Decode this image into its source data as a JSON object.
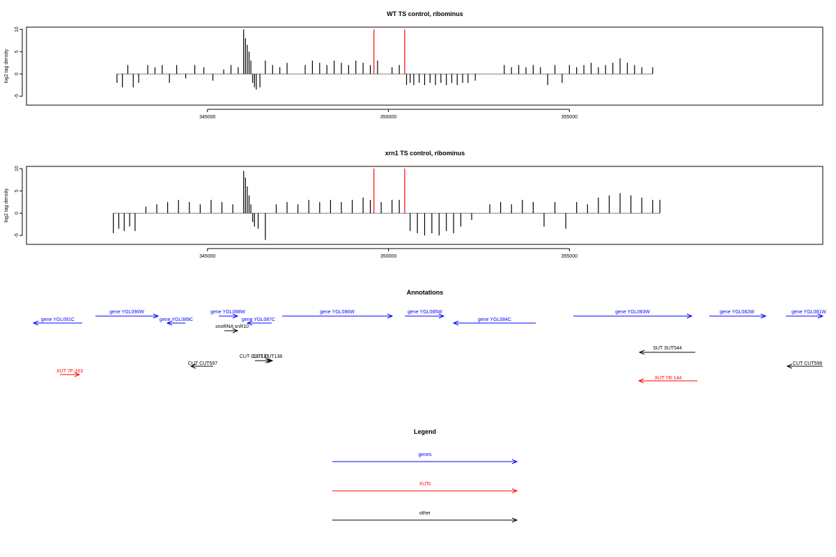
{
  "chart_data": [
    {
      "type": "bar",
      "title": "WT TS control, ribominus",
      "xlabel": "",
      "ylabel": "log2 tag density",
      "ylim": [
        -7,
        10.5
      ],
      "xlim": [
        340000,
        362000
      ],
      "xticks": [
        345000,
        350000,
        355000
      ],
      "xtick_labels": [
        "345000",
        "350000",
        "355000"
      ],
      "yticks": [
        -5,
        0,
        5,
        10
      ],
      "ytick_labels": [
        "-5",
        "0",
        "5",
        "10"
      ],
      "series": [
        {
          "x": [
            342500,
            342650,
            342800,
            342950,
            343100,
            343350,
            343550,
            343750,
            343950,
            344150,
            344400,
            344650,
            344900,
            345150,
            345450,
            345650,
            345850,
            346000,
            346050,
            346100,
            346150,
            346200,
            346250,
            346300,
            346350,
            346450,
            346600,
            346800,
            347000,
            347200,
            347700,
            347900,
            348100,
            348300,
            348500,
            348700,
            348900,
            349100,
            349300,
            349500,
            349700,
            350100,
            350300,
            350500,
            350600,
            350700,
            350850,
            351000,
            351150,
            351300,
            351450,
            351600,
            351750,
            351900,
            352050,
            352200,
            352400,
            353200,
            353400,
            353600,
            353800,
            354000,
            354200,
            354400,
            354600,
            354800,
            355000,
            355200,
            355400,
            355600,
            355800,
            356000,
            356200,
            356400,
            356600,
            356800,
            357000,
            357300
          ],
          "y": [
            -2,
            -3,
            2,
            -3,
            -2,
            2,
            1.5,
            2,
            -2,
            2,
            -1,
            2,
            1.5,
            -1.5,
            1,
            2,
            1.5,
            10,
            8,
            6.5,
            5,
            3,
            -2,
            -3,
            -3.5,
            -3,
            3,
            2,
            1.5,
            2.5,
            2,
            3,
            2.5,
            2,
            3,
            2.5,
            2,
            3,
            2.5,
            2,
            3,
            1.5,
            2,
            -2.5,
            -2,
            -2.5,
            -2,
            -2.5,
            -2,
            -2.5,
            -2,
            -2.5,
            -2,
            -2.5,
            -2,
            -2,
            -1.5,
            2,
            1.5,
            2,
            1.5,
            2,
            1.5,
            -2.5,
            2,
            -2,
            2,
            1.5,
            2,
            2.5,
            1.5,
            2,
            2.5,
            3.5,
            2.5,
            2,
            1.5,
            1.5
          ]
        }
      ],
      "highlight_color": "#ff0000",
      "highlight_x": [
        349600,
        350450
      ],
      "highlight_y": 10
    },
    {
      "type": "bar",
      "title": "xrn1 TS control, ribominus",
      "xlabel": "",
      "ylabel": "log2 tag density",
      "ylim": [
        -7,
        10.5
      ],
      "xlim": [
        340000,
        362000
      ],
      "xticks": [
        345000,
        350000,
        355000
      ],
      "xtick_labels": [
        "345000",
        "350000",
        "355000"
      ],
      "yticks": [
        -5,
        0,
        5,
        10
      ],
      "ytick_labels": [
        "-5",
        "0",
        "5",
        "10"
      ],
      "series": [
        {
          "x": [
            342400,
            342550,
            342700,
            342850,
            343000,
            343300,
            343600,
            343900,
            344200,
            344500,
            344800,
            345100,
            345400,
            345700,
            346000,
            346050,
            346100,
            346150,
            346200,
            346250,
            346300,
            346400,
            346600,
            346900,
            347200,
            347500,
            347800,
            348100,
            348400,
            348700,
            349000,
            349300,
            349500,
            349800,
            350100,
            350300,
            350600,
            350800,
            351000,
            351200,
            351400,
            351600,
            351800,
            352000,
            352300,
            352800,
            353100,
            353400,
            353700,
            354000,
            354300,
            354600,
            354900,
            355200,
            355500,
            355800,
            356100,
            356400,
            356700,
            357000,
            357300,
            357500
          ],
          "y": [
            -4.5,
            -3.5,
            -4,
            -3,
            -4,
            1.5,
            2,
            2.5,
            3,
            2.5,
            2,
            3,
            2.5,
            2,
            9.5,
            8,
            6,
            4,
            2,
            -2,
            -3,
            -3.5,
            -6,
            2,
            2.5,
            2,
            3,
            2.5,
            3,
            2.5,
            3,
            3.5,
            3,
            2.5,
            3,
            3,
            -4,
            -4.5,
            -5,
            -4.5,
            -5,
            -4,
            -4.5,
            -3,
            -1.5,
            2,
            2.5,
            2,
            3,
            2.5,
            -3,
            2.5,
            -3.5,
            2.5,
            2,
            3.5,
            4,
            4.5,
            4,
            3.5,
            3,
            3
          ]
        }
      ],
      "highlight_color": "#ff0000",
      "highlight_x": [
        349600,
        350450
      ],
      "highlight_y": 10
    }
  ],
  "annotations": {
    "title": "Annotations",
    "genes": [
      {
        "label": "gene YGL091C",
        "dir": "left"
      },
      {
        "label": "gene YGL090W",
        "dir": "right"
      },
      {
        "label": "gene YGL089C",
        "dir": "left"
      },
      {
        "label": "gene YGL088W",
        "dir": "right"
      },
      {
        "label": "gene YGL087C",
        "dir": "left"
      },
      {
        "label": "gene YGL086W",
        "dir": "right"
      },
      {
        "label": "gene YGL085W",
        "dir": "right"
      },
      {
        "label": "gene YGL084C",
        "dir": "left"
      },
      {
        "label": "gene YGL083W",
        "dir": "right"
      },
      {
        "label": "gene YGL082W",
        "dir": "right"
      },
      {
        "label": "gene YGL081W",
        "dir": "right"
      }
    ],
    "others": [
      {
        "label": "snoRNA snR10",
        "dir": "right"
      },
      {
        "label": "CUT CUT597",
        "dir": "left"
      },
      {
        "label": "CUT CUT137",
        "dir": "right"
      },
      {
        "label": "CUT CUT138",
        "dir": "right"
      },
      {
        "label": "SUT SUT544",
        "dir": "left"
      },
      {
        "label": "CUT CUT598",
        "dir": "left"
      }
    ],
    "xuts": [
      {
        "label": "XUT 7F-163",
        "dir": "right"
      },
      {
        "label": "XUT 7R-144",
        "dir": "left"
      }
    ]
  },
  "legend": {
    "title": "Legend",
    "items": [
      {
        "label": "genes",
        "color": "#0000ff"
      },
      {
        "label": "XUTs",
        "color": "#ff0000"
      },
      {
        "label": "other",
        "color": "#000000"
      }
    ]
  },
  "colors": {
    "gene": "#0000ff",
    "xut": "#ff0000",
    "other": "#000000",
    "baseline": "#808080"
  }
}
